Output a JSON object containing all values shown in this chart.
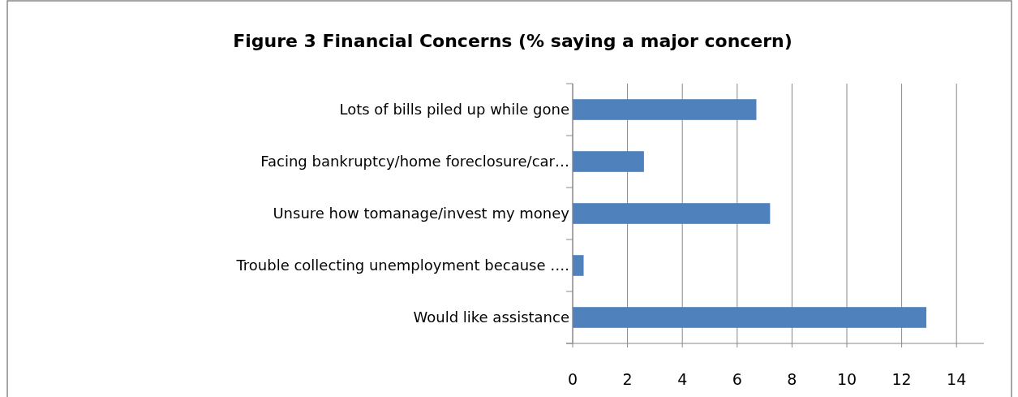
{
  "chart_data": {
    "type": "bar",
    "orientation": "horizontal",
    "title": "Figure 3  Financial Concerns (% saying a major concern)",
    "categories": [
      "Lots of bills piled up while gone",
      "Facing bankruptcy/home foreclosure/car…",
      "Unsure how tomanage/invest my money",
      "Trouble collecting unemployment because ….",
      "Would like assistance"
    ],
    "values": [
      6.7,
      2.6,
      7.2,
      0.4,
      12.9
    ],
    "color": "#4f81bd",
    "xlim": [
      0,
      15
    ],
    "xticks": [
      0,
      2,
      4,
      6,
      8,
      10,
      12,
      14
    ],
    "grid": "x"
  }
}
